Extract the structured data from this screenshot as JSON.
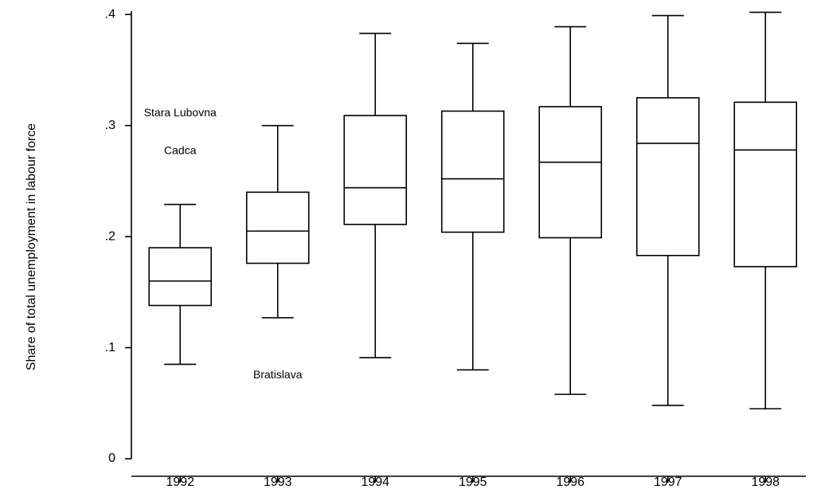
{
  "chart_data": {
    "type": "box",
    "ylabel": "Share of total unemployment in labour force",
    "categories": [
      "1992",
      "1993",
      "1994",
      "1995",
      "1996",
      "1997",
      "1998"
    ],
    "boxes": [
      {
        "whislo": 0.085,
        "q1": 0.138,
        "med": 0.16,
        "q3": 0.19,
        "whishi": 0.229,
        "outliers": [
          {
            "label": "Stara Lubovna",
            "value": 0.311
          },
          {
            "label": "Cadca",
            "value": 0.277
          }
        ]
      },
      {
        "whislo": 0.127,
        "q1": 0.176,
        "med": 0.205,
        "q3": 0.24,
        "whishi": 0.3,
        "outliers": [
          {
            "label": "Bratislava",
            "value": 0.075
          }
        ]
      },
      {
        "whislo": 0.091,
        "q1": 0.211,
        "med": 0.244,
        "q3": 0.309,
        "whishi": 0.383,
        "outliers": []
      },
      {
        "whislo": 0.08,
        "q1": 0.204,
        "med": 0.252,
        "q3": 0.313,
        "whishi": 0.374,
        "outliers": []
      },
      {
        "whislo": 0.058,
        "q1": 0.199,
        "med": 0.267,
        "q3": 0.317,
        "whishi": 0.389,
        "outliers": []
      },
      {
        "whislo": 0.048,
        "q1": 0.183,
        "med": 0.284,
        "q3": 0.325,
        "whishi": 0.399,
        "outliers": []
      },
      {
        "whislo": 0.045,
        "q1": 0.173,
        "med": 0.278,
        "q3": 0.321,
        "whishi": 0.402,
        "outliers": []
      }
    ],
    "ylim": [
      0,
      0.403
    ],
    "yticks": [
      0,
      {
        "value": 0.1,
        "label": ".1"
      },
      {
        "value": 0.2,
        "label": ".2"
      },
      {
        "value": 0.3,
        "label": ".3"
      },
      {
        "value": 0.4,
        "label": ".4"
      }
    ],
    "color": "#000000"
  }
}
